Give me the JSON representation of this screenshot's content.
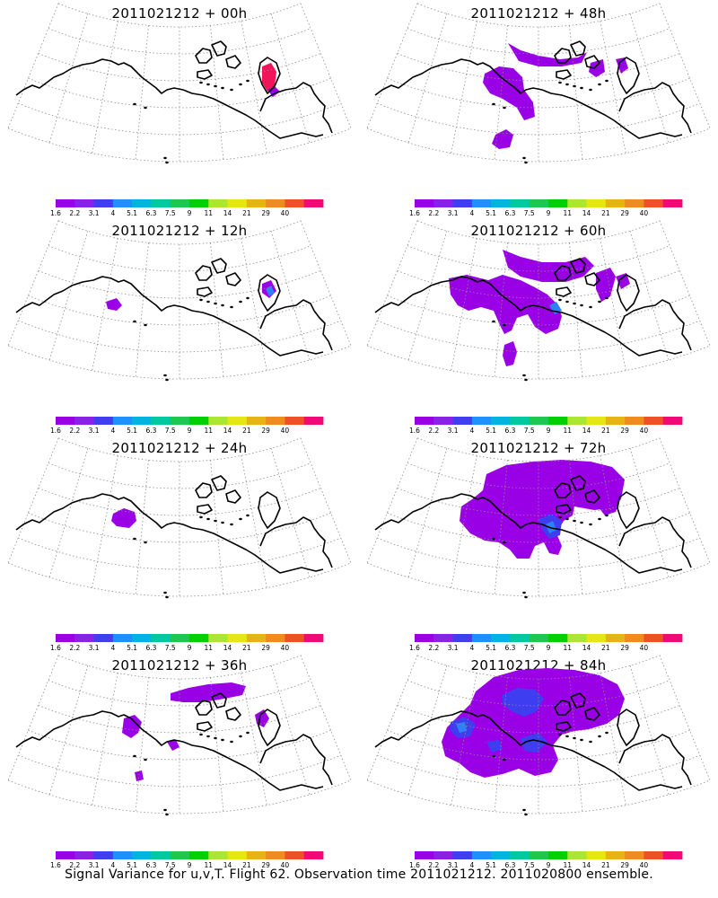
{
  "colors": {
    "coast": "#000000",
    "grid": "#8c8c8c",
    "shade_purple": "#9a00e6",
    "shade_blue_dark": "#3e3ef0",
    "shade_blue": "#2f7ff5",
    "shade_red": "#f0145a"
  },
  "colorbar": {
    "colors": [
      "#9a00e6",
      "#8a22e6",
      "#3f3ff0",
      "#1e90ff",
      "#00b4e0",
      "#00c8a0",
      "#1ec850",
      "#00d000",
      "#aae632",
      "#e6e614",
      "#e6b414",
      "#f08c1e",
      "#f05028",
      "#f00a78"
    ],
    "tick_labels": [
      "1.6",
      "2.2",
      "3.1",
      "4",
      "5.1",
      "6.3",
      "7.5",
      "9",
      "11",
      "14",
      "21",
      "29",
      "40"
    ]
  },
  "panels": [
    {
      "title": "2011021212 + 00h",
      "level": 0
    },
    {
      "title": "2011021212 + 48h",
      "level": 4
    },
    {
      "title": "2011021212 + 12h",
      "level": 1
    },
    {
      "title": "2011021212 + 60h",
      "level": 5
    },
    {
      "title": "2011021212 + 24h",
      "level": 2
    },
    {
      "title": "2011021212 + 72h",
      "level": 6
    },
    {
      "title": "2011021212 + 36h",
      "level": 3
    },
    {
      "title": "2011021212 + 84h",
      "level": 7
    }
  ],
  "footer": "Signal Variance for u,v,T. Flight 62. Observation time 2011021212. 2011020800 ensemble."
}
